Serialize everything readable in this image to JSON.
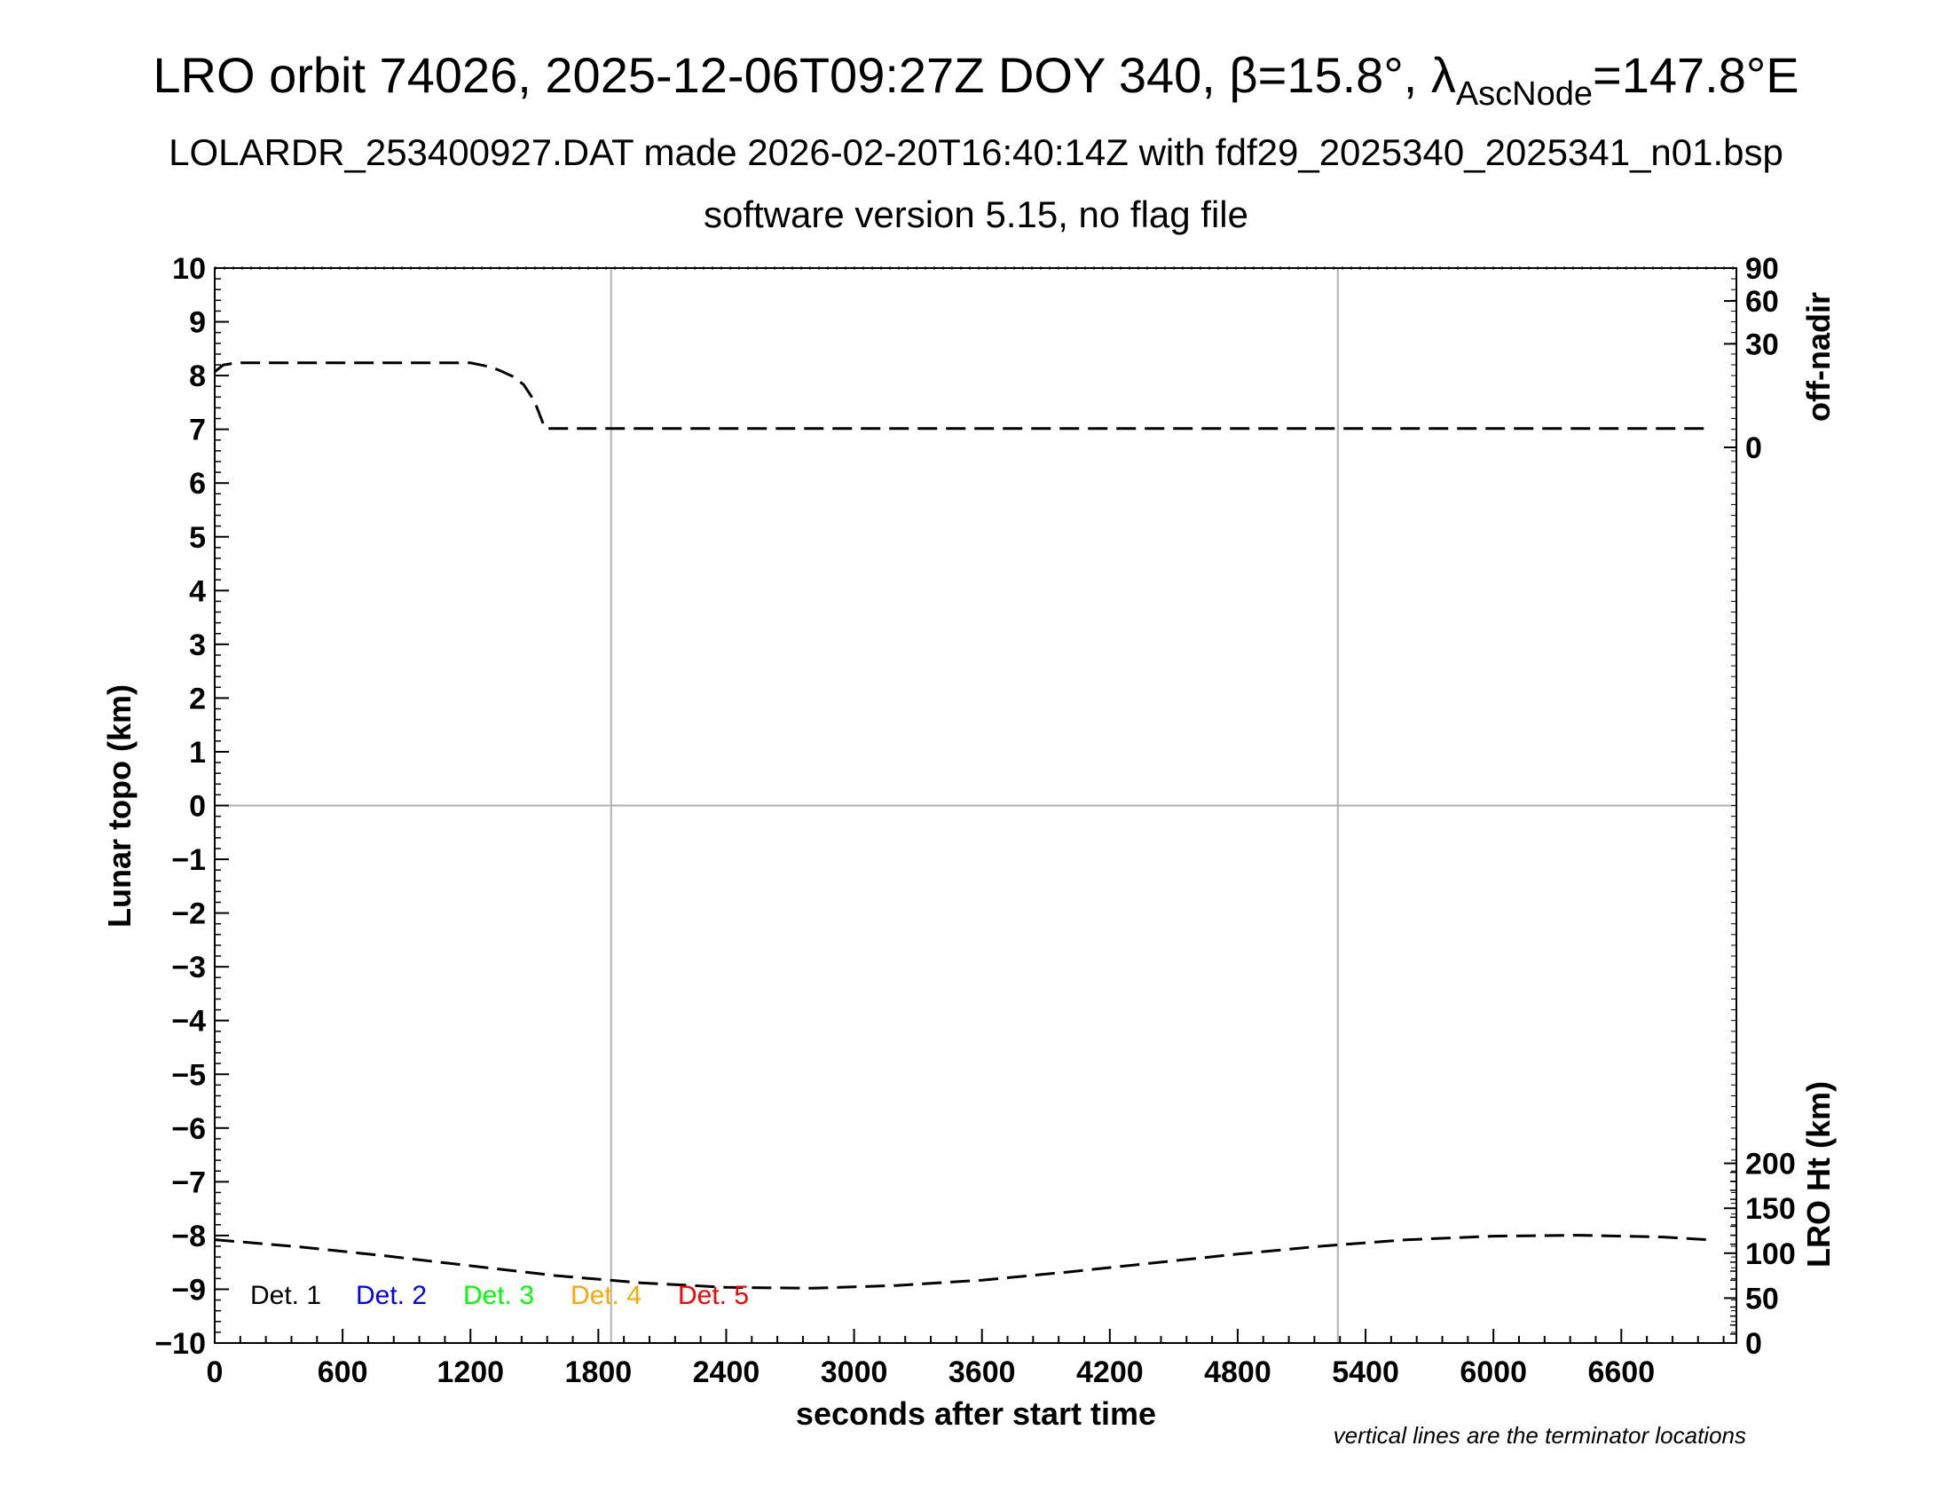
{
  "header": {
    "title_main": "LRO orbit 74026, 2025-12-06T09:27Z DOY 340, β=15.8°, λ",
    "title_sub": "AscNode",
    "title_tail": "=147.8°E",
    "subtitle": "LOLARDR_253400927.DAT made 2026-02-20T16:40:14Z with fdf29_2025340_2025341_n01.bsp",
    "subtitle2": "software version 5.15, no flag file"
  },
  "chart_data": {
    "type": "line",
    "xlabel": "seconds after start time",
    "ylabel_left": "Lunar topo (km)",
    "ylabel_right_top": "off-nadir",
    "ylabel_right_bottom": "LRO Ht (km)",
    "note": "vertical lines are the terminator locations",
    "xlim": [
      0,
      7140
    ],
    "ylim": [
      -10,
      10
    ],
    "x_ticks": [
      0,
      600,
      1200,
      1800,
      2400,
      3000,
      3600,
      4200,
      4800,
      5400,
      6000,
      6600
    ],
    "y_ticks": [
      10,
      9,
      8,
      7,
      6,
      5,
      4,
      3,
      2,
      1,
      0,
      -1,
      -2,
      -3,
      -4,
      -5,
      -6,
      -7,
      -8,
      -9,
      -10
    ],
    "y_tick_labels": [
      "10",
      "9",
      "8",
      "7",
      "6",
      "5",
      "4",
      "3",
      "2",
      "1",
      "0",
      "−1",
      "−2",
      "−3",
      "−4",
      "−5",
      "−6",
      "−7",
      "−8",
      "−9",
      "−10"
    ],
    "off_nadir_ticks": [
      90,
      60,
      30,
      0
    ],
    "lro_ht_ticks": [
      200,
      150,
      100,
      50,
      0
    ],
    "terminator_x": [
      1860,
      5270
    ],
    "grid_horizontal_y": [
      0
    ],
    "legend": [
      {
        "label": "Det. 1",
        "color": "#000000"
      },
      {
        "label": "Det. 2",
        "color": "#0000ff"
      },
      {
        "label": "Det. 3",
        "color": "#00ff00"
      },
      {
        "label": "Det. 4",
        "color": "#ffa500"
      },
      {
        "label": "Det. 5",
        "color": "#ff0000"
      }
    ],
    "series": [
      {
        "axis": "off-nadir",
        "style": "dashed",
        "color": "#000000",
        "x": [
          0,
          40,
          100,
          300,
          600,
          900,
          1150,
          1200,
          1250,
          1300,
          1350,
          1400,
          1450,
          1500,
          1550,
          1600,
          1700,
          1800,
          1900,
          2000,
          2500,
          3000,
          4000,
          5000,
          6000,
          6700,
          7000
        ],
        "y": [
          16,
          19,
          20,
          20,
          20,
          20,
          20,
          20,
          19,
          18,
          16,
          14,
          11,
          6,
          1,
          1,
          1,
          1,
          1,
          1,
          1,
          1,
          1,
          1,
          1,
          1,
          1
        ]
      },
      {
        "axis": "LRO Ht (km)",
        "style": "dashed",
        "color": "#000000",
        "x": [
          0,
          400,
          800,
          1200,
          1600,
          2000,
          2400,
          2800,
          3200,
          3600,
          4000,
          4400,
          4800,
          5200,
          5600,
          6000,
          6400,
          6800,
          7000
        ],
        "y": [
          115,
          107,
          97,
          86,
          75,
          67,
          62,
          61,
          64,
          70,
          79,
          89,
          99,
          108,
          115,
          119,
          120,
          118,
          115
        ]
      }
    ]
  }
}
